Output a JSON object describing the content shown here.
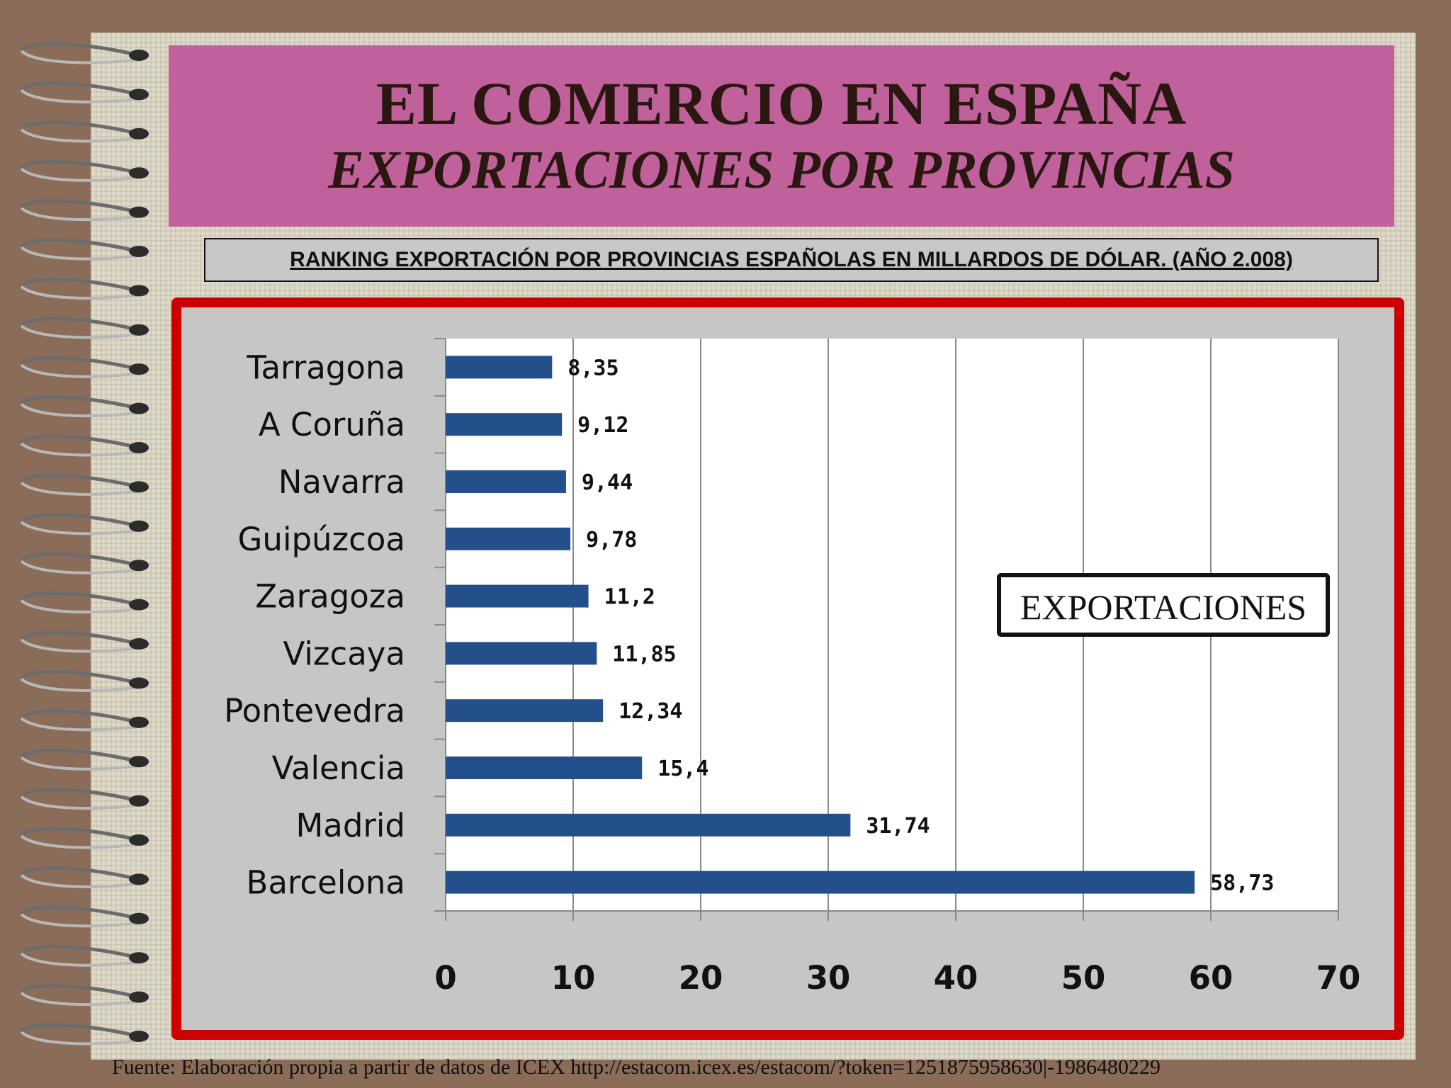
{
  "title": {
    "line1": "EL COMERCIO EN ESPAÑA",
    "line2": "EXPORTACIONES POR PROVINCIAS"
  },
  "subtitle": "RANKING EXPORTACIÓN POR PROVINCIAS ESPAÑOLAS EN MILLARDOS DE DÓLAR. (AÑO 2.008)",
  "source": "Fuente: Elaboración propia a partir de datos de ICEX http://estacom.icex.es/estacom/?token=1251875958630|-1986480229",
  "colors": {
    "background": "#8a6c58",
    "banner": "#c0619c",
    "frame": "#cc0000",
    "bar": "#234f8a"
  },
  "chart_data": {
    "type": "bar",
    "orientation": "horizontal",
    "categories": [
      "Tarragona",
      "A Coruña",
      "Navarra",
      "Guipúzcoa",
      "Zaragoza",
      "Vizcaya",
      "Pontevedra",
      "Valencia",
      "Madrid",
      "Barcelona"
    ],
    "values": [
      8.35,
      9.12,
      9.44,
      9.78,
      11.2,
      11.85,
      12.34,
      15.4,
      31.74,
      58.73
    ],
    "value_labels": [
      "8,35",
      "9,12",
      "9,44",
      "9,78",
      "11,2",
      "11,85",
      "12,34",
      "15,4",
      "31,74",
      "58,73"
    ],
    "series": [
      {
        "name": "EXPORTACIONES",
        "values": [
          8.35,
          9.12,
          9.44,
          9.78,
          11.2,
          11.85,
          12.34,
          15.4,
          31.74,
          58.73
        ]
      }
    ],
    "xlim": [
      0,
      70
    ],
    "xticks": [
      0,
      10,
      20,
      30,
      40,
      50,
      60,
      70
    ],
    "grid": true,
    "legend": "right",
    "bar_color": "#234f8a"
  }
}
